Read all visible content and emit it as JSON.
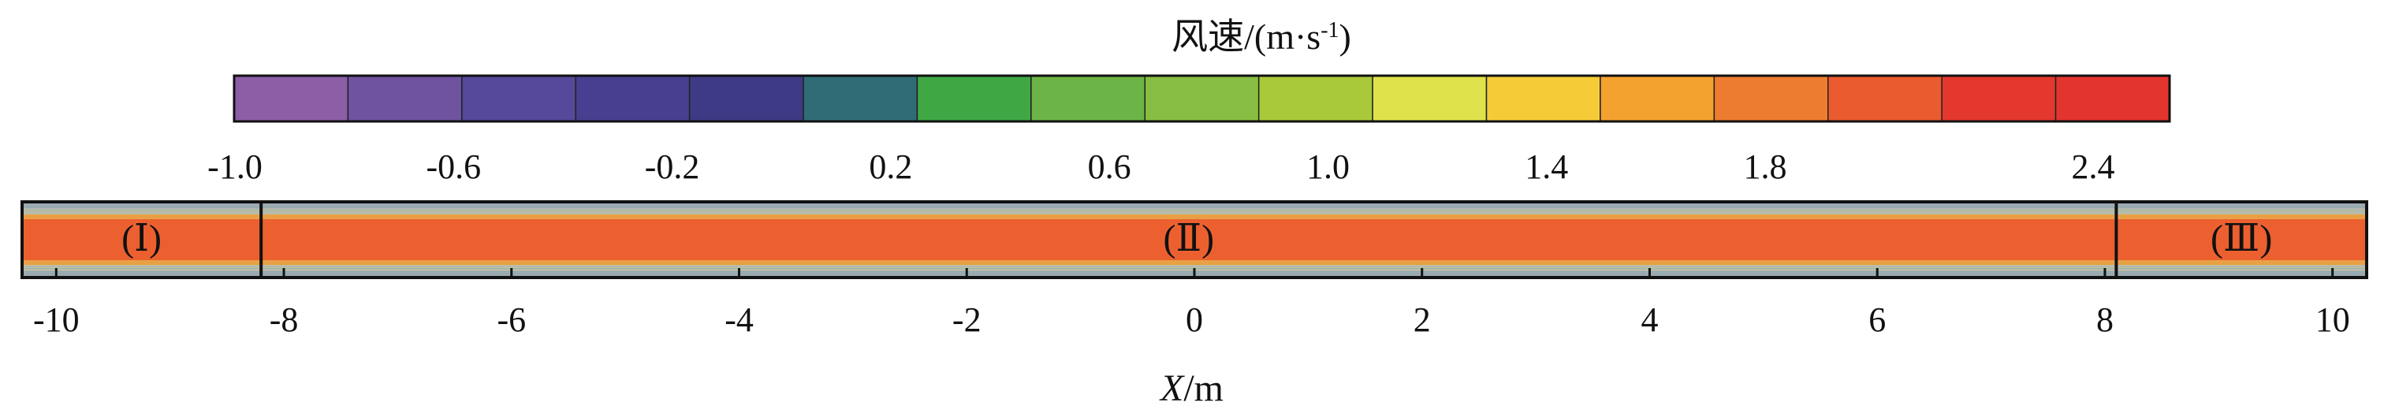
{
  "chart_data": {
    "type": "heatmap",
    "title": "风速/(m·s-1)",
    "colorbar": {
      "colors": [
        "#8b5ea6",
        "#6f53a0",
        "#56489a",
        "#483f90",
        "#3e3a85",
        "#2f6c76",
        "#3fa845",
        "#6cb446",
        "#86bd42",
        "#a9c93a",
        "#dfe24a",
        "#f5cb38",
        "#f4a22f",
        "#ee7c30",
        "#ea5b2f",
        "#e4382e",
        "#e4342e"
      ],
      "tick_values": [
        -1.0,
        -0.6,
        -0.2,
        0.2,
        0.6,
        1.0,
        1.4,
        1.8,
        2.4
      ],
      "tick_labels": [
        "-1.0",
        "-0.6",
        "-0.2",
        "0.2",
        "0.6",
        "1.0",
        "1.4",
        "1.8",
        "2.4"
      ]
    },
    "field": {
      "band_color": "#ec6030",
      "edge_color": "#8fa8a8",
      "fringe_color": "#b8c49a"
    },
    "xlabel_italic": "X",
    "xlabel_unit": "/m",
    "xlim": [
      -10.3,
      10.3
    ],
    "x_ticks": [
      -10,
      -8,
      -6,
      -4,
      -2,
      0,
      2,
      4,
      6,
      8,
      10
    ],
    "x_tick_labels": [
      "-10",
      "-8",
      "-6",
      "-4",
      "-2",
      "0",
      "2",
      "4",
      "6",
      "8",
      "10"
    ],
    "regions": [
      {
        "label": "(Ⅰ)",
        "x_start": -10.3,
        "x_end": -8.2
      },
      {
        "label": "(Ⅱ)",
        "x_start": -8.2,
        "x_end": 8.1
      },
      {
        "label": "(Ⅲ)",
        "x_start": 8.1,
        "x_end": 10.3
      }
    ]
  }
}
